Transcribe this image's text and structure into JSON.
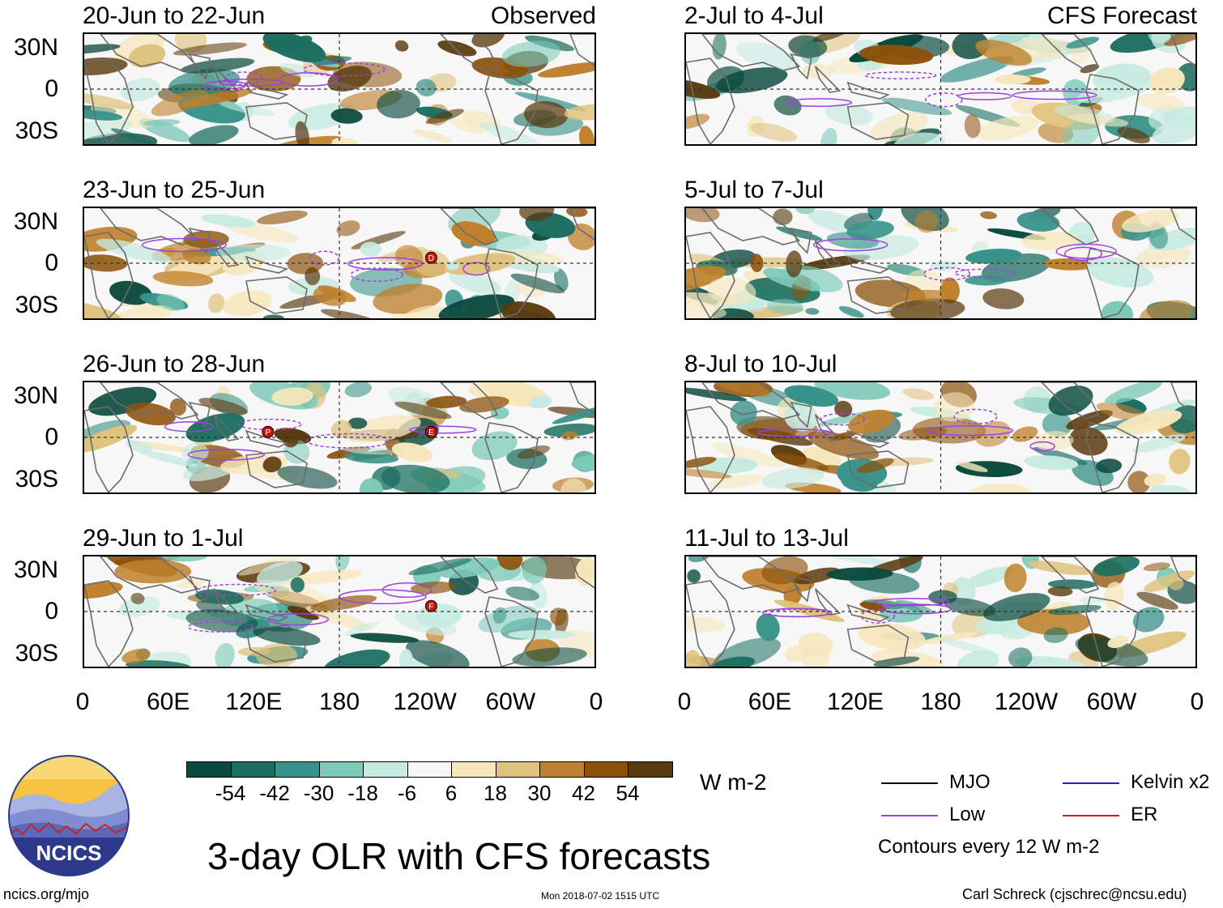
{
  "chart_data": {
    "type": "heatmap",
    "title": "3-day OLR with CFS forecasts",
    "variable": "OLR anomaly",
    "units": "W m-2",
    "colorbar": {
      "levels": [
        -54,
        -42,
        -30,
        -18,
        -6,
        6,
        18,
        30,
        42,
        54
      ],
      "tick_labels": [
        "-54",
        "-42",
        "-30",
        "-18",
        "-6",
        "6",
        "18",
        "30",
        "42",
        "54"
      ],
      "colors": [
        "#0b4a3e",
        "#1c6e61",
        "#3a938a",
        "#7cc9b8",
        "#c7ebe1",
        "#f7f7f7",
        "#f6e7bd",
        "#dfc27d",
        "#bf812d",
        "#8c510a",
        "#5a3a0f"
      ]
    },
    "lat_ticks": [
      "30N",
      "0",
      "30S"
    ],
    "lon_ticks": [
      "0",
      "60E",
      "120E",
      "180",
      "120W",
      "60W",
      "0"
    ],
    "observed_label": "Observed",
    "forecast_label": "CFS Forecast",
    "panels_observed": [
      {
        "title": "20-Jun to 22-Jun"
      },
      {
        "title": "23-Jun to 25-Jun"
      },
      {
        "title": "26-Jun to 28-Jun"
      },
      {
        "title": "29-Jun to 1-Jul"
      }
    ],
    "panels_forecast": [
      {
        "title": "2-Jul to 4-Jul"
      },
      {
        "title": "5-Jul to 7-Jul"
      },
      {
        "title": "8-Jul to 10-Jul"
      },
      {
        "title": "11-Jul to 13-Jul"
      }
    ],
    "storm_markers": [
      {
        "panel": "23-Jun to 25-Jun",
        "label": "D"
      },
      {
        "panel": "26-Jun to 28-Jun",
        "label": "P"
      },
      {
        "panel": "26-Jun to 28-Jun",
        "label": "E"
      },
      {
        "panel": "29-Jun to 1-Jul",
        "label": "F"
      }
    ],
    "legend": [
      {
        "name": "MJO",
        "color": "#000000"
      },
      {
        "name": "Kelvin x2",
        "color": "#2222cc"
      },
      {
        "name": "Low",
        "color": "#a040e0"
      },
      {
        "name": "ER",
        "color": "#dd1111"
      }
    ],
    "contour_note": "Contours every 12 W m-2"
  },
  "branding": {
    "logo_text": "NCICS",
    "url": "ncics.org/mjo",
    "timestamp": "Mon 2018-07-02 1515 UTC",
    "credit": "Carl Schreck (cjschrec@ncsu.edu)"
  }
}
